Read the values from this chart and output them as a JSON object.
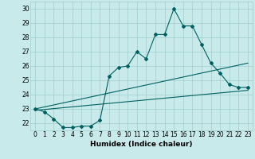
{
  "xlabel": "Humidex (Indice chaleur)",
  "ylabel": "",
  "x_ticks": [
    0,
    1,
    2,
    3,
    4,
    5,
    6,
    7,
    8,
    9,
    10,
    11,
    12,
    13,
    14,
    15,
    16,
    17,
    18,
    19,
    20,
    21,
    22,
    23
  ],
  "ylim": [
    21.5,
    30.5
  ],
  "xlim": [
    -0.5,
    23.5
  ],
  "bg_color": "#c8eaea",
  "grid_color": "#a0cccc",
  "line_color": "#006060",
  "line1_x": [
    0,
    1,
    2,
    3,
    4,
    5,
    6,
    7,
    8,
    9,
    10,
    11,
    12,
    13,
    14,
    15,
    16,
    17,
    18,
    19,
    20,
    21,
    22,
    23
  ],
  "line1_y": [
    23.0,
    22.8,
    22.3,
    21.7,
    21.7,
    21.8,
    21.8,
    22.2,
    25.3,
    25.9,
    26.0,
    27.0,
    26.5,
    28.2,
    28.2,
    30.0,
    28.8,
    28.8,
    27.5,
    26.2,
    25.5,
    24.7,
    24.5,
    24.5
  ],
  "line2_x": [
    0,
    23
  ],
  "line2_y": [
    23.0,
    26.2
  ],
  "line3_x": [
    0,
    23
  ],
  "line3_y": [
    22.9,
    24.3
  ],
  "marker": "D",
  "markersize": 2,
  "linewidth": 0.8,
  "yticks": [
    22,
    23,
    24,
    25,
    26,
    27,
    28,
    29,
    30
  ],
  "tick_fontsize": 5.5,
  "label_fontsize": 6.5,
  "label_fontweight": "bold"
}
